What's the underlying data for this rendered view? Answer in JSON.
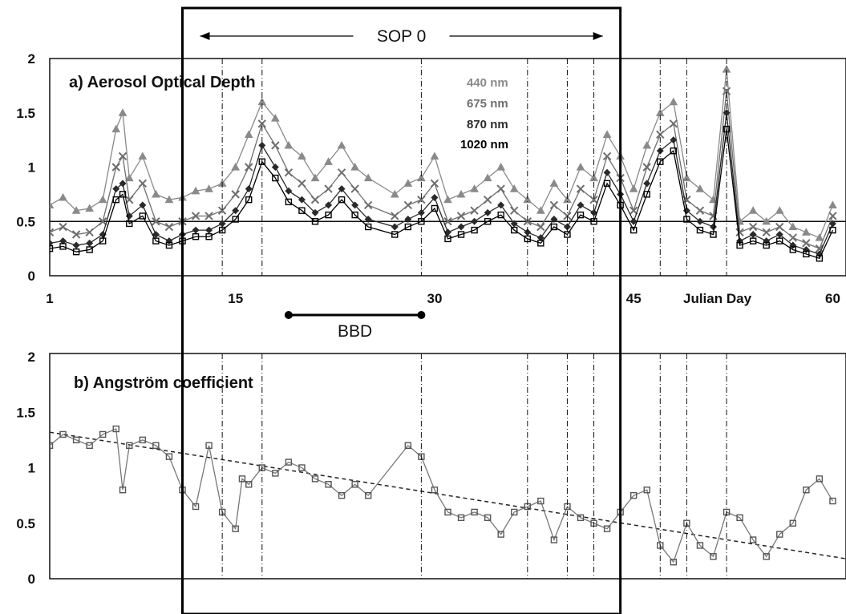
{
  "chart_data": [
    {
      "type": "line",
      "title": "a) Aerosol Optical Depth",
      "xlabel": "Julian Day",
      "ylabel": "",
      "xlim": [
        1,
        61
      ],
      "ylim": [
        0,
        2
      ],
      "x_ticks": [
        "1",
        "15",
        "30",
        "45",
        "60"
      ],
      "y_ticks": [
        "0",
        "0.5",
        "1",
        "1.5",
        "2"
      ],
      "reference_line_y": 0.5,
      "legend_placement": "top-center",
      "legend": [
        "440 nm",
        "675 nm",
        "870 nm",
        "1020 nm"
      ],
      "series": [
        {
          "name": "440 nm",
          "color": "#8a8a8a",
          "x": [
            1,
            2,
            3,
            4,
            5,
            6,
            6.5,
            7,
            8,
            9,
            10,
            11,
            12,
            13,
            14,
            15,
            16,
            17,
            18,
            19,
            20,
            21,
            22,
            23,
            24,
            25,
            27,
            28,
            29,
            30,
            31,
            32,
            33,
            34,
            35,
            36,
            37,
            38,
            39,
            40,
            41,
            42,
            43,
            44,
            45,
            46,
            47,
            48,
            49,
            50,
            51,
            52,
            53,
            54,
            55,
            56,
            57,
            58,
            59,
            60
          ],
          "values": [
            0.65,
            0.72,
            0.6,
            0.62,
            0.7,
            1.35,
            1.5,
            0.9,
            1.1,
            0.75,
            0.7,
            0.72,
            0.78,
            0.8,
            0.85,
            1.0,
            1.3,
            1.6,
            1.45,
            1.2,
            1.1,
            0.9,
            1.05,
            1.2,
            1.0,
            0.9,
            0.75,
            0.85,
            0.9,
            1.1,
            0.7,
            0.75,
            0.8,
            0.9,
            1.0,
            0.8,
            0.7,
            0.6,
            0.85,
            0.7,
            1.0,
            0.9,
            1.3,
            1.1,
            0.8,
            1.2,
            1.5,
            1.6,
            0.9,
            0.8,
            0.7,
            1.9,
            0.5,
            0.6,
            0.5,
            0.6,
            0.45,
            0.4,
            0.35,
            0.65
          ]
        },
        {
          "name": "675 nm",
          "color": "#6e6e6e",
          "x": [
            1,
            2,
            3,
            4,
            5,
            6,
            6.5,
            7,
            8,
            9,
            10,
            11,
            12,
            13,
            14,
            15,
            16,
            17,
            18,
            19,
            20,
            21,
            22,
            23,
            24,
            25,
            27,
            28,
            29,
            30,
            31,
            32,
            33,
            34,
            35,
            36,
            37,
            38,
            39,
            40,
            41,
            42,
            43,
            44,
            45,
            46,
            47,
            48,
            49,
            50,
            51,
            52,
            53,
            54,
            55,
            56,
            57,
            58,
            59,
            60
          ],
          "values": [
            0.4,
            0.45,
            0.38,
            0.4,
            0.5,
            1.0,
            1.1,
            0.7,
            0.85,
            0.5,
            0.45,
            0.5,
            0.55,
            0.55,
            0.6,
            0.75,
            1.0,
            1.4,
            1.2,
            0.95,
            0.85,
            0.7,
            0.8,
            0.95,
            0.8,
            0.65,
            0.55,
            0.65,
            0.7,
            0.85,
            0.5,
            0.55,
            0.6,
            0.7,
            0.8,
            0.6,
            0.5,
            0.45,
            0.65,
            0.55,
            0.8,
            0.7,
            1.1,
            0.9,
            0.6,
            1.0,
            1.3,
            1.4,
            0.7,
            0.6,
            0.55,
            1.7,
            0.4,
            0.45,
            0.4,
            0.45,
            0.35,
            0.3,
            0.25,
            0.55
          ]
        },
        {
          "name": "870 nm",
          "color": "#2a2a2a",
          "x": [
            1,
            2,
            3,
            4,
            5,
            6,
            6.5,
            7,
            8,
            9,
            10,
            11,
            12,
            13,
            14,
            15,
            16,
            17,
            18,
            19,
            20,
            21,
            22,
            23,
            24,
            25,
            27,
            28,
            29,
            30,
            31,
            32,
            33,
            34,
            35,
            36,
            37,
            38,
            39,
            40,
            41,
            42,
            43,
            44,
            45,
            46,
            47,
            48,
            49,
            50,
            51,
            52,
            53,
            54,
            55,
            56,
            57,
            58,
            59,
            60
          ],
          "values": [
            0.3,
            0.32,
            0.28,
            0.3,
            0.38,
            0.8,
            0.85,
            0.55,
            0.65,
            0.38,
            0.32,
            0.38,
            0.42,
            0.42,
            0.48,
            0.6,
            0.8,
            1.2,
            1.0,
            0.78,
            0.7,
            0.58,
            0.65,
            0.8,
            0.65,
            0.52,
            0.45,
            0.52,
            0.58,
            0.72,
            0.4,
            0.45,
            0.5,
            0.58,
            0.65,
            0.48,
            0.4,
            0.35,
            0.52,
            0.45,
            0.65,
            0.58,
            0.95,
            0.75,
            0.5,
            0.85,
            1.15,
            1.25,
            0.6,
            0.5,
            0.45,
            1.5,
            0.32,
            0.38,
            0.32,
            0.38,
            0.28,
            0.24,
            0.2,
            0.48
          ]
        },
        {
          "name": "1020 nm",
          "color": "#000000",
          "x": [
            1,
            2,
            3,
            4,
            5,
            6,
            6.5,
            7,
            8,
            9,
            10,
            11,
            12,
            13,
            14,
            15,
            16,
            17,
            18,
            19,
            20,
            21,
            22,
            23,
            24,
            25,
            27,
            28,
            29,
            30,
            31,
            32,
            33,
            34,
            35,
            36,
            37,
            38,
            39,
            40,
            41,
            42,
            43,
            44,
            45,
            46,
            47,
            48,
            49,
            50,
            51,
            52,
            53,
            54,
            55,
            56,
            57,
            58,
            59,
            60
          ],
          "values": [
            0.25,
            0.27,
            0.22,
            0.24,
            0.32,
            0.7,
            0.75,
            0.48,
            0.55,
            0.32,
            0.28,
            0.32,
            0.36,
            0.36,
            0.42,
            0.52,
            0.7,
            1.05,
            0.9,
            0.68,
            0.6,
            0.5,
            0.56,
            0.7,
            0.56,
            0.45,
            0.38,
            0.45,
            0.5,
            0.62,
            0.34,
            0.38,
            0.42,
            0.5,
            0.56,
            0.42,
            0.34,
            0.3,
            0.45,
            0.38,
            0.56,
            0.5,
            0.85,
            0.65,
            0.42,
            0.75,
            1.05,
            1.15,
            0.52,
            0.42,
            0.38,
            1.35,
            0.28,
            0.32,
            0.28,
            0.32,
            0.24,
            0.2,
            0.16,
            0.42
          ]
        }
      ]
    },
    {
      "type": "line",
      "title": "b) Angström coefficient",
      "xlabel": "",
      "ylabel": "",
      "xlim": [
        1,
        61
      ],
      "ylim": [
        0,
        2
      ],
      "y_ticks": [
        "0",
        "0.5",
        "1",
        "1.5",
        "2"
      ],
      "trend_line": {
        "x": [
          1,
          61
        ],
        "y": [
          1.32,
          0.18
        ]
      },
      "series": [
        {
          "name": "",
          "color": "#777777",
          "x": [
            1,
            2,
            3,
            4,
            5,
            6,
            6.5,
            7,
            8,
            9,
            10,
            11,
            12,
            13,
            14,
            15,
            15.5,
            16,
            17,
            18,
            19,
            20,
            21,
            22,
            23,
            24,
            25,
            28,
            29,
            30,
            31,
            32,
            33,
            34,
            35,
            36,
            37,
            38,
            39,
            40,
            41,
            42,
            43,
            44,
            45,
            46,
            47,
            48,
            49,
            50,
            51,
            52,
            53,
            54,
            55,
            56,
            57,
            58,
            59,
            60
          ],
          "values": [
            1.2,
            1.3,
            1.25,
            1.2,
            1.3,
            1.35,
            0.8,
            1.2,
            1.25,
            1.2,
            1.1,
            0.8,
            0.65,
            1.2,
            0.6,
            0.45,
            0.9,
            0.85,
            1.0,
            0.95,
            1.05,
            1.0,
            0.9,
            0.85,
            0.75,
            0.85,
            0.75,
            1.2,
            1.1,
            0.8,
            0.6,
            0.55,
            0.6,
            0.55,
            0.4,
            0.6,
            0.65,
            0.7,
            0.35,
            0.65,
            0.55,
            0.5,
            0.45,
            0.6,
            0.75,
            0.8,
            0.3,
            0.15,
            0.5,
            0.3,
            0.2,
            0.6,
            0.55,
            0.35,
            0.2,
            0.4,
            0.5,
            0.8,
            0.9,
            0.7
          ]
        }
      ]
    }
  ],
  "annotations": {
    "sop_label": "SOP 0",
    "bbd_label": "BBD",
    "sop_x_range": [
      11,
      44
    ],
    "bbd_x_range": [
      19,
      29
    ],
    "event_lines_x": [
      14,
      17,
      29,
      37,
      40,
      42,
      47,
      49,
      52
    ]
  }
}
